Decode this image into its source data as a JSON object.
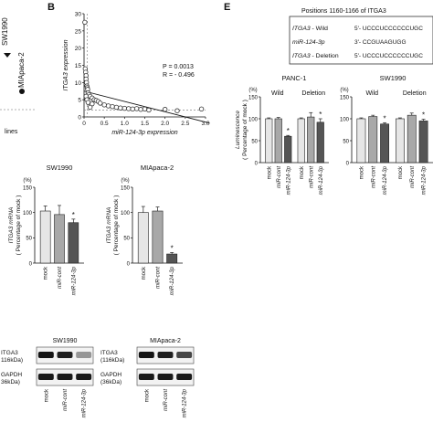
{
  "panel_labels": {
    "b": "B",
    "e": "E"
  },
  "left_fragment": {
    "sw": "SW1990",
    "mia": "MIApaca-2",
    "lines": "lines"
  },
  "chart_data": [
    {
      "id": "scatter_b",
      "type": "scatter",
      "xlabel": "miR-124-3p expression",
      "ylabel": "ITGA3 expression",
      "xlim": [
        0,
        3.0
      ],
      "ylim": [
        0,
        30
      ],
      "xticks": [
        "0",
        "0.5",
        "1.0",
        "1.5",
        "2.0",
        "2.5",
        "3.0"
      ],
      "yticks": [
        "0",
        "5",
        "10",
        "15",
        "20",
        "25",
        "30"
      ],
      "stat_p": "P = 0.0013",
      "stat_r": "R = - 0.496",
      "points": [
        [
          0.02,
          27.5
        ],
        [
          0.03,
          14
        ],
        [
          0.04,
          13
        ],
        [
          0.05,
          12
        ],
        [
          0.05,
          11
        ],
        [
          0.06,
          10
        ],
        [
          0.07,
          9
        ],
        [
          0.08,
          8.5
        ],
        [
          0.09,
          8
        ],
        [
          0.1,
          7
        ],
        [
          0.12,
          6.5
        ],
        [
          0.05,
          6
        ],
        [
          0.15,
          6
        ],
        [
          0.2,
          5.5
        ],
        [
          0.07,
          5
        ],
        [
          0.25,
          5
        ],
        [
          0.3,
          4.8
        ],
        [
          0.35,
          4.5
        ],
        [
          0.1,
          4.2
        ],
        [
          0.4,
          4
        ],
        [
          0.2,
          3.8
        ],
        [
          0.5,
          3.5
        ],
        [
          0.6,
          3.2
        ],
        [
          0.7,
          3
        ],
        [
          0.15,
          2.8
        ],
        [
          0.8,
          2.8
        ],
        [
          0.9,
          2.6
        ],
        [
          1.0,
          2.5
        ],
        [
          1.1,
          2.4
        ],
        [
          1.2,
          2.3
        ],
        [
          1.3,
          2.4
        ],
        [
          1.4,
          2.2
        ],
        [
          1.5,
          2.3
        ],
        [
          1.6,
          2.0
        ],
        [
          2.0,
          2.2
        ],
        [
          2.3,
          1.8
        ],
        [
          2.9,
          2.3
        ]
      ],
      "trend": [
        [
          0,
          7.5
        ],
        [
          3.1,
          -1.8
        ]
      ]
    },
    {
      "id": "bar_sw1990_mrna",
      "type": "bar",
      "title": "SW1990",
      "ylabel": "ITGA3 mRNA ( Percentage of mock )",
      "unit": "(%)",
      "ylim": [
        0,
        150
      ],
      "yticks": [
        "0",
        "50",
        "100",
        "150"
      ],
      "categories": [
        "mock",
        "miR-cont",
        "miR-124-3p"
      ],
      "values": [
        103,
        96,
        80
      ],
      "errors": [
        10,
        18,
        7
      ],
      "star": "*",
      "colors": [
        "#e6e6e6",
        "#a8a8a8",
        "#555555"
      ]
    },
    {
      "id": "bar_mia_mrna",
      "type": "bar",
      "title": "MIApaca-2",
      "ylabel": "ITGA3 mRNA ( Percentage of mock )",
      "unit": "(%)",
      "ylim": [
        0,
        150
      ],
      "yticks": [
        "0",
        "50",
        "100",
        "150"
      ],
      "categories": [
        "mock",
        "miR-cont",
        "miR-124-3p"
      ],
      "values": [
        100,
        103,
        18
      ],
      "errors": [
        12,
        8,
        3
      ],
      "star": "*",
      "colors": [
        "#e6e6e6",
        "#a8a8a8",
        "#555555"
      ]
    },
    {
      "id": "bar_panc1_lum",
      "type": "bar",
      "title": "PANC-1",
      "ylabel": "Luminescence ( Percentage of mock )",
      "unit": "(%)",
      "ylim": [
        0,
        150
      ],
      "yticks": [
        "0",
        "50",
        "100",
        "150"
      ],
      "groups": [
        "Wild",
        "Deletion"
      ],
      "categories": [
        "mock",
        "miR-cont",
        "miR-124-3p",
        "mock",
        "miR-cont",
        "miR-124-3p"
      ],
      "values": [
        100,
        100,
        60,
        100,
        104,
        92
      ],
      "errors": [
        2,
        3,
        2,
        2,
        10,
        8
      ],
      "star": "*",
      "colors": [
        "#e6e6e6",
        "#a8a8a8",
        "#555555",
        "#e6e6e6",
        "#a8a8a8",
        "#555555"
      ]
    },
    {
      "id": "bar_sw1990_lum",
      "type": "bar",
      "title": "SW1990",
      "unit": "(%)",
      "ylim": [
        0,
        150
      ],
      "yticks": [
        "0",
        "50",
        "100",
        "150"
      ],
      "groups": [
        "Wild",
        "Deletion"
      ],
      "categories": [
        "mock",
        "miR-cont",
        "miR-124-3p",
        "mock",
        "miR-cont",
        "miR-124-3p"
      ],
      "values": [
        100,
        105,
        88,
        100,
        108,
        95
      ],
      "errors": [
        2,
        3,
        3,
        2,
        5,
        4
      ],
      "star": "*",
      "colors": [
        "#e6e6e6",
        "#a8a8a8",
        "#555555",
        "#e6e6e6",
        "#a8a8a8",
        "#555555"
      ]
    }
  ],
  "sequence_box": {
    "header": "Positions 1160-1166 of ITGA3",
    "rows": [
      {
        "label": "ITGA3 - Wild",
        "seq": "5'-  UCCCUCCCCCCUGC"
      },
      {
        "label": "miR-124-3p",
        "seq": "3'-          CCGUAAGUGG"
      },
      {
        "label": "ITGA3 - Deletion",
        "seq": "5'-  UCCCUCCCCCCUGC"
      }
    ]
  },
  "western": {
    "panels": [
      {
        "title": "SW1990",
        "band1": "ITGA3 116kDa)",
        "band2": "GAPDH 36kDa)"
      },
      {
        "title": "MIApaca-2",
        "band1": "ITGA3 (116kDa)",
        "band2": "GAPDH (36kDa)"
      }
    ],
    "lanes": [
      "mock",
      "miR-cont",
      "miR-124-3p"
    ]
  }
}
